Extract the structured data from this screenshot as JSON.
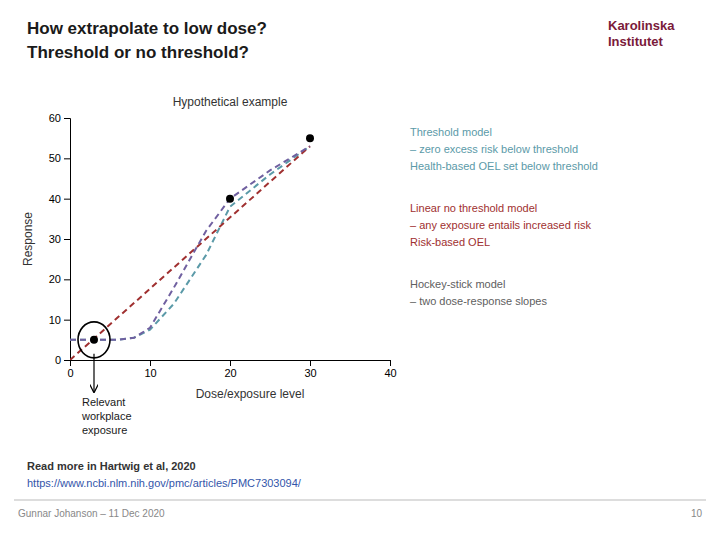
{
  "chart_data": {
    "type": "line",
    "title": "Hypothetical example",
    "xlabel": "Dose/exposure level",
    "ylabel": "Response",
    "xlim": [
      0,
      40
    ],
    "ylim": [
      0,
      60
    ],
    "xticks": [
      0,
      10,
      20,
      30,
      40
    ],
    "yticks": [
      0,
      10,
      20,
      30,
      40,
      50,
      60
    ],
    "grid": false,
    "series": [
      {
        "type": "scatter",
        "marker": "circle",
        "color": "#000000",
        "x": [
          3,
          20,
          30
        ],
        "values": [
          5,
          40,
          55
        ]
      },
      {
        "type": "line",
        "line_style": "dashed",
        "color": "#5b9aa8",
        "x": [
          0,
          2,
          4,
          6,
          8,
          10,
          13,
          17,
          20,
          25,
          30
        ],
        "values": [
          5,
          5,
          5,
          5,
          5.5,
          7.5,
          14,
          26,
          38,
          46,
          53
        ]
      },
      {
        "type": "line",
        "line_style": "dashed",
        "color": "#a03030",
        "x": [
          0,
          30
        ],
        "values": [
          0,
          53
        ]
      },
      {
        "type": "line",
        "line_style": "dashed",
        "color": "#7060a0",
        "x": [
          0,
          2,
          4,
          6,
          8,
          10,
          13,
          17,
          20,
          25,
          30
        ],
        "values": [
          5,
          5,
          5,
          5,
          5.5,
          8,
          18,
          32,
          40,
          47,
          53
        ]
      }
    ],
    "annotations": {
      "heading": {
        "lines": [
          "How extrapolate to low dose?",
          "Threshold or no threshold?"
        ]
      },
      "exposure": {
        "lines": [
          "Relevant",
          "workplace",
          "exposure"
        ]
      },
      "threshold": {
        "lines": [
          "Threshold model",
          "– zero excess risk below threshold",
          "Health-based OEL set below threshold"
        ],
        "color": "#5b9aa8"
      },
      "linear": {
        "lines": [
          "Linear no threshold model",
          "– any exposure entails increased risk",
          "Risk-based OEL"
        ],
        "color": "#a03030"
      },
      "hockey": {
        "lines": [
          "Hockey-stick model",
          "– two dose-response slopes"
        ],
        "color": "#606060"
      },
      "source": {
        "lines": [
          "Read more in Hartwig et al, 2020"
        ]
      },
      "link": {
        "lines": [
          "https://www.ncbi.nlm.nih.gov/pmc/articles/PMC7303094/"
        ],
        "color": "#3355aa"
      },
      "author": {
        "lines": [
          "Gunnar Johanson – 11 Dec 2020"
        ]
      },
      "page": {
        "lines": [
          "10"
        ]
      },
      "logo": {
        "lines": [
          "Karolinska",
          "Institutet"
        ],
        "color": "#7a1a3a"
      }
    }
  }
}
